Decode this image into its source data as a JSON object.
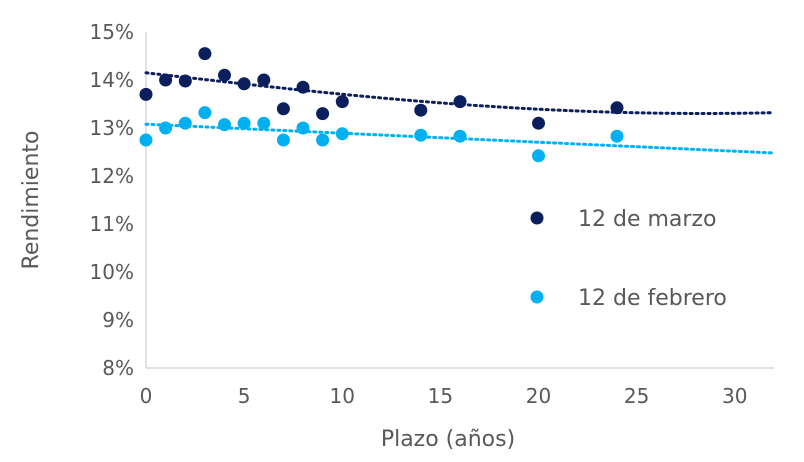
{
  "chart_data": {
    "type": "scatter",
    "xlabel": "Plazo (años)",
    "ylabel": "Rendimiento",
    "xlim": [
      0,
      32
    ],
    "ylim": [
      8,
      15
    ],
    "x_ticks": [
      "0",
      "5",
      "10",
      "15",
      "20",
      "25",
      "30"
    ],
    "y_ticks": [
      "8%",
      "9%",
      "10%",
      "11%",
      "12%",
      "13%",
      "14%",
      "15%"
    ],
    "grid": false,
    "legend_position": "right",
    "series": [
      {
        "name": "12 de marzo",
        "color": "#0b1f5c",
        "x": [
          0,
          1,
          2,
          3,
          4,
          5,
          6,
          7,
          8,
          9,
          10,
          14,
          16,
          20,
          24
        ],
        "y": [
          13.7,
          14.0,
          13.98,
          14.55,
          14.1,
          13.92,
          14.0,
          13.4,
          13.85,
          13.3,
          13.55,
          13.37,
          13.55,
          13.1,
          13.42
        ],
        "trendline": [
          [
            0,
            14.15
          ],
          [
            10,
            13.68
          ],
          [
            20,
            13.33
          ],
          [
            32,
            13.32
          ]
        ]
      },
      {
        "name": "12 de febrero",
        "color": "#00b0f0",
        "x": [
          0,
          1,
          2,
          3,
          4,
          5,
          6,
          7,
          8,
          9,
          10,
          14,
          16,
          20,
          24
        ],
        "y": [
          12.75,
          13.0,
          13.1,
          13.32,
          13.07,
          13.1,
          13.1,
          12.75,
          13.0,
          12.75,
          12.88,
          12.85,
          12.83,
          12.42,
          12.83
        ],
        "trendline": [
          [
            0,
            13.08
          ],
          [
            32,
            12.48
          ]
        ]
      }
    ]
  }
}
